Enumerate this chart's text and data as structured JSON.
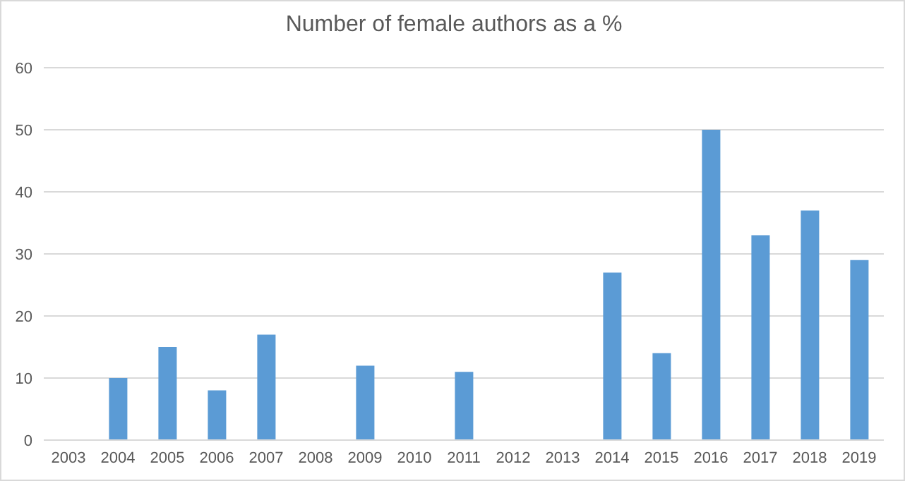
{
  "chart_data": {
    "type": "bar",
    "title": "Number of female authors as a %",
    "categories": [
      "2003",
      "2004",
      "2005",
      "2006",
      "2007",
      "2008",
      "2009",
      "2010",
      "2011",
      "2012",
      "2013",
      "2014",
      "2015",
      "2016",
      "2017",
      "2018",
      "2019"
    ],
    "values": [
      0,
      10,
      15,
      8,
      17,
      0,
      12,
      0,
      11,
      0,
      0,
      27,
      14,
      50,
      33,
      37,
      29
    ],
    "color": "#5b9bd5",
    "ylim": [
      0,
      60
    ],
    "yticks": [
      0,
      10,
      20,
      30,
      40,
      50,
      60
    ],
    "grid": "y"
  }
}
